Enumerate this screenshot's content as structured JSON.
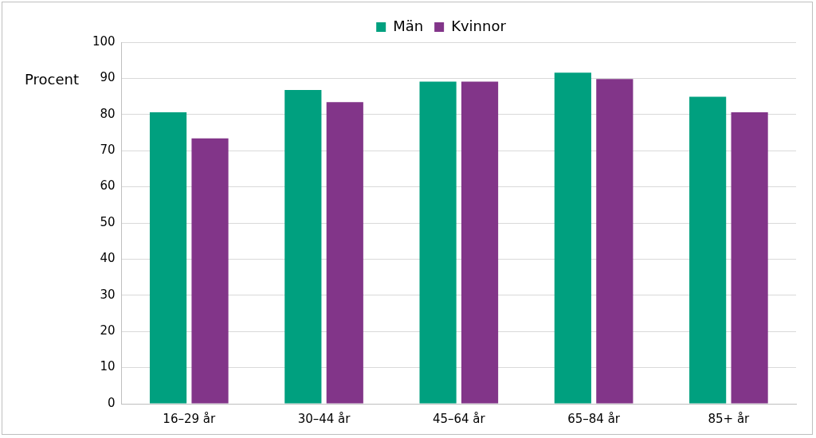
{
  "chart_data": {
    "type": "bar",
    "y_label": "Procent",
    "categories": [
      "16–29 år",
      "30–44 år",
      "45–64 år",
      "65–84 år",
      "85+ år"
    ],
    "series": [
      {
        "name": "Män",
        "color": "#00a07f",
        "values": [
          80.6,
          86.8,
          89.1,
          91.6,
          84.9
        ]
      },
      {
        "name": "Kvinnor",
        "color": "#823589",
        "values": [
          73.4,
          83.4,
          89.1,
          89.8,
          80.6
        ]
      }
    ],
    "ylim": [
      0,
      100
    ],
    "yticks": [
      0,
      10,
      20,
      30,
      40,
      50,
      60,
      70,
      80,
      90,
      100
    ],
    "grid": true,
    "legend": "top"
  }
}
